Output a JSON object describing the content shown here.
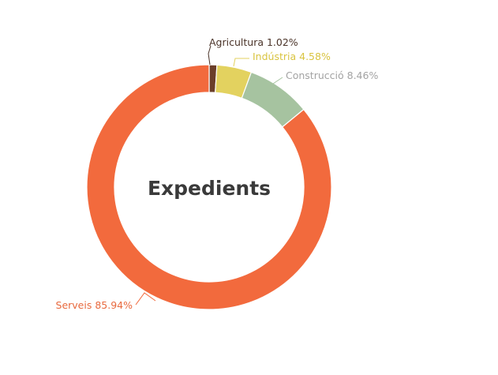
{
  "chart_data": {
    "type": "pie",
    "variant": "donut",
    "center_label": "Expedients",
    "slices": [
      {
        "name": "Agricultura",
        "value": 1.02,
        "label": "Agricultura 1.02%",
        "color": "#6b3f2a"
      },
      {
        "name": "Indústria",
        "value": 4.58,
        "label": "Indústria 4.58%",
        "color": "#e3d25f"
      },
      {
        "name": "Construcció",
        "value": 8.46,
        "label": "Construcció 8.46%",
        "color": "#a6c3a0"
      },
      {
        "name": "Serveis",
        "value": 85.94,
        "label": "Serveis 85.94%",
        "color": "#f26a3d"
      }
    ],
    "label_colors": {
      "Agricultura": "#4a3328",
      "Indústria": "#d9c440",
      "Construcció": "#a3a3a3",
      "Serveis": "#e8693e"
    },
    "legend": "none"
  }
}
